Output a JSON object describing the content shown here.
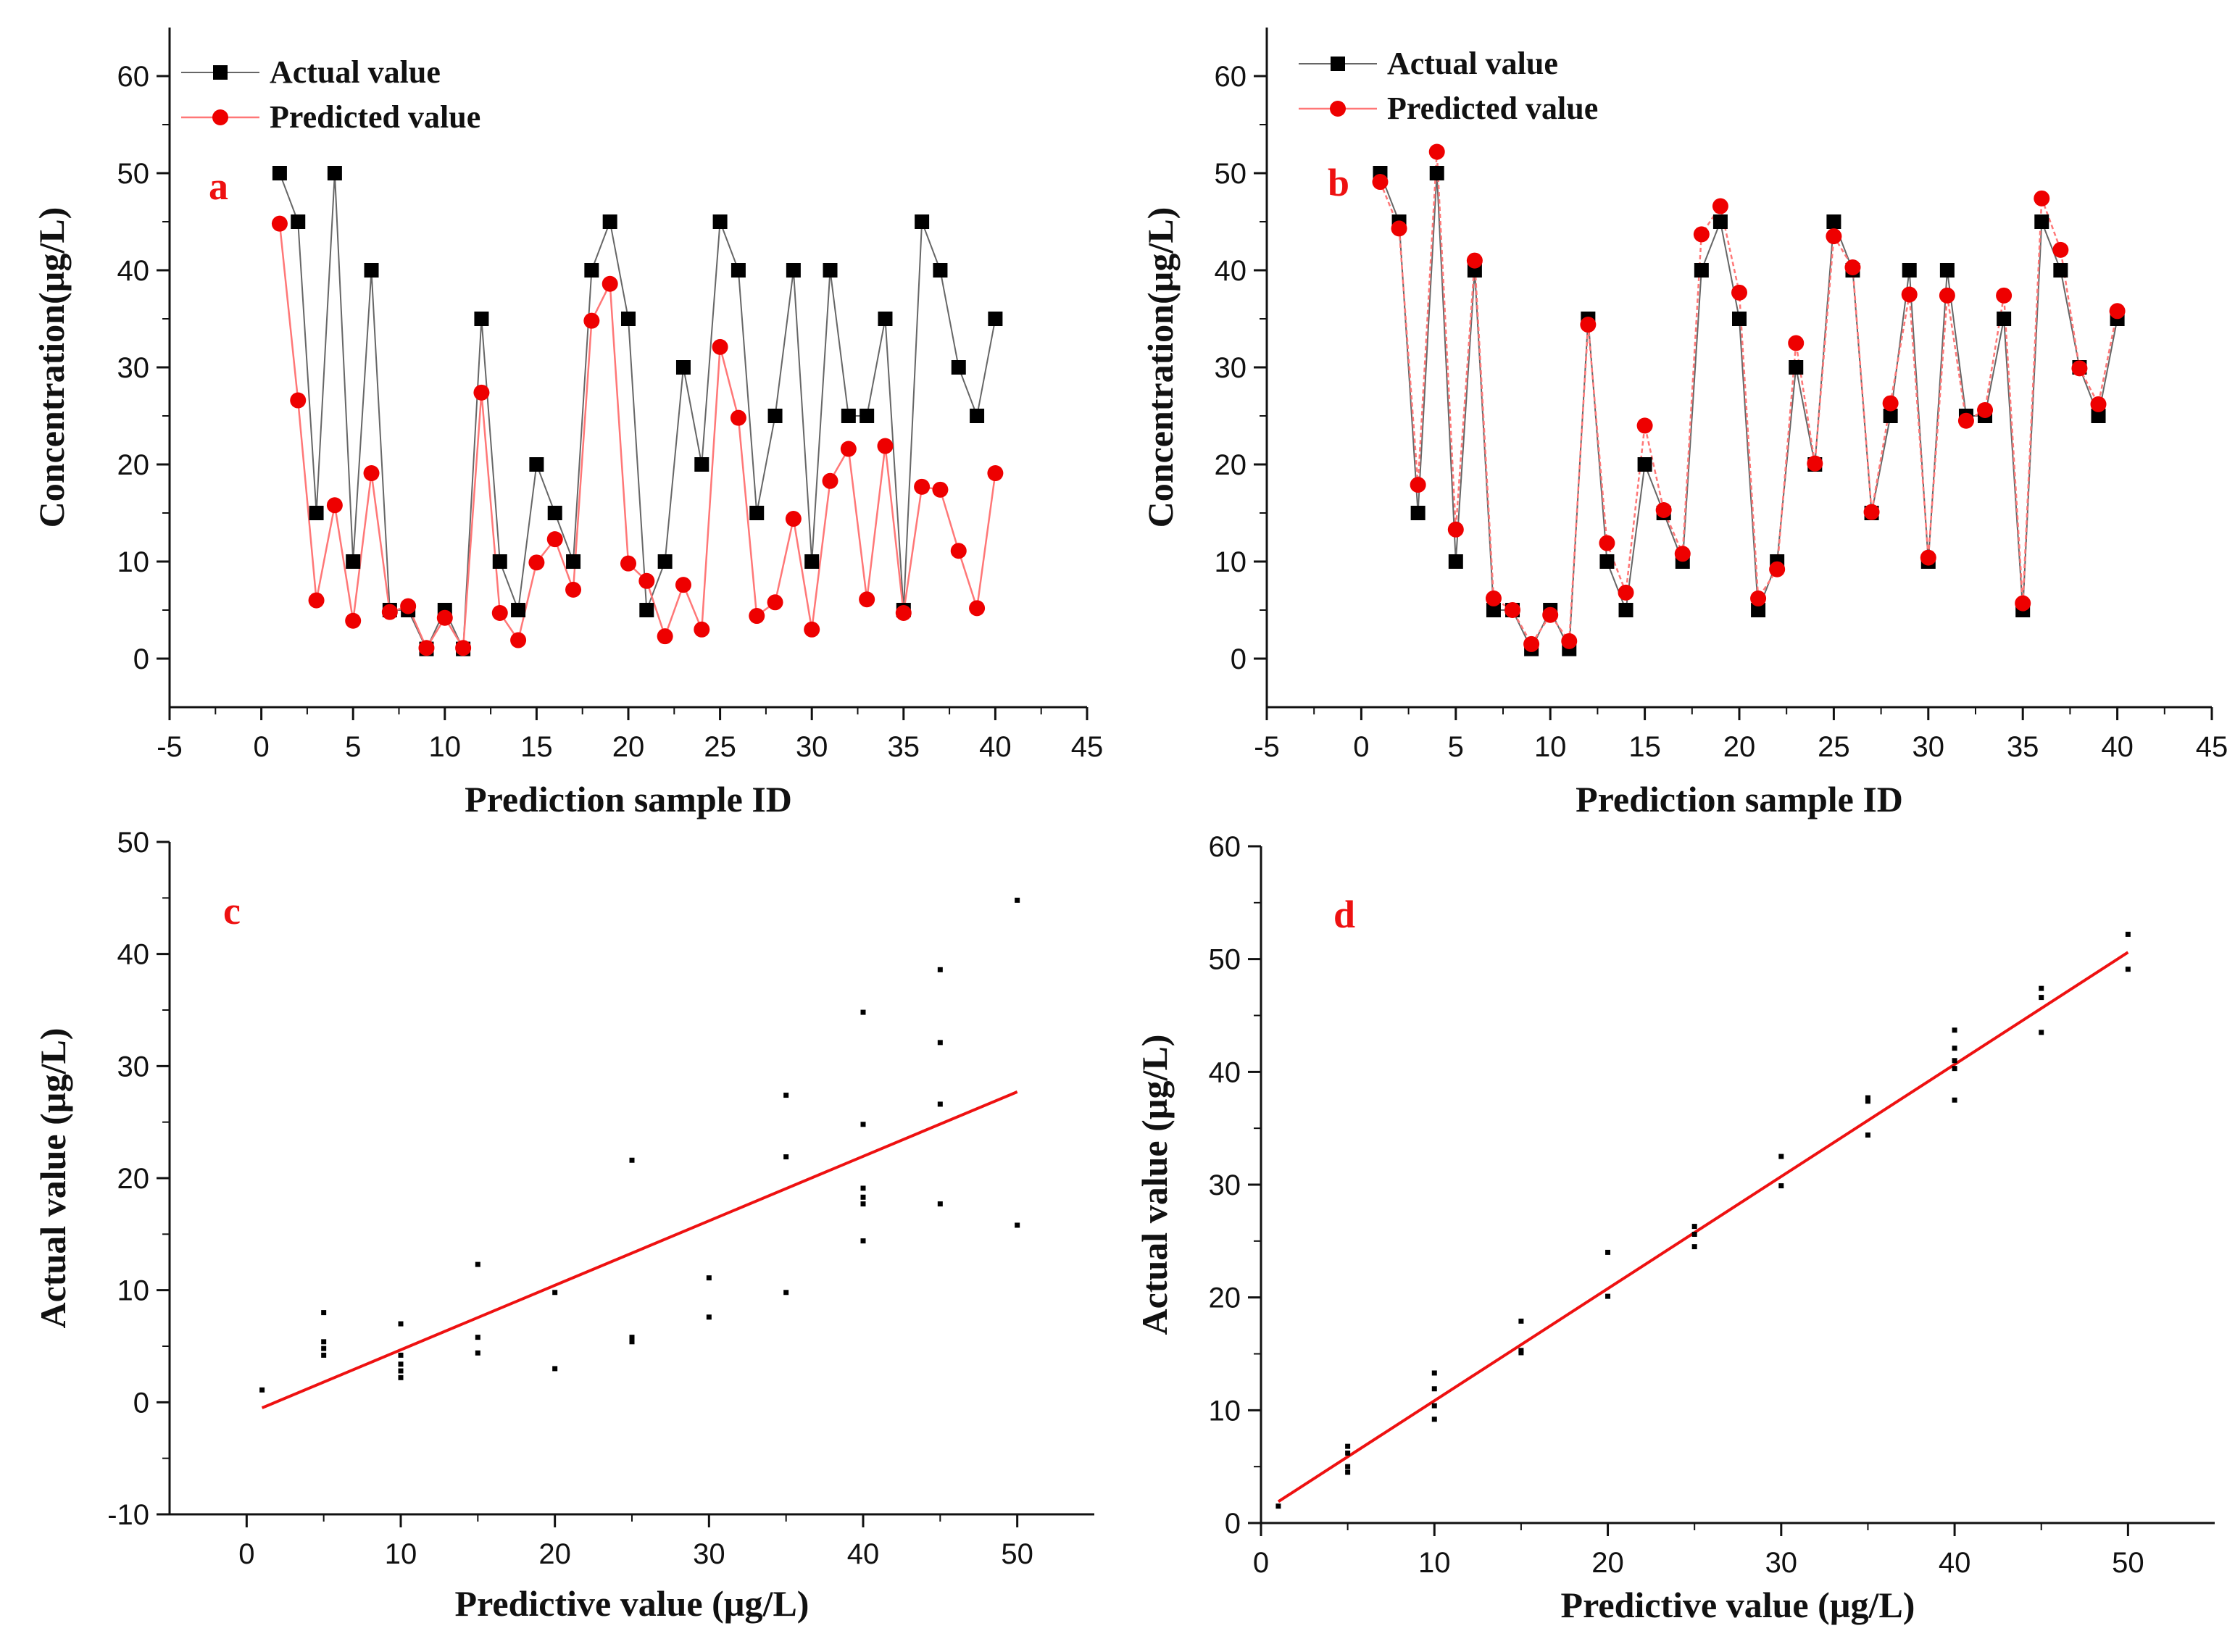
{
  "colors": {
    "actual_line": "#666666",
    "actual_marker": "#000000",
    "predicted_line": "#ff7777",
    "predicted_marker": "#ee0000",
    "fit_line": "#ee1111",
    "axis": "#111111"
  },
  "chart_data": [
    {
      "type": "line",
      "panel_label": "a",
      "xlabel": "Prediction sample ID",
      "ylabel": "Concentration(µg/L)",
      "xlim": [
        -5,
        45
      ],
      "ylim": [
        -5,
        65
      ],
      "xticks": [
        "-5",
        "0",
        "5",
        "10",
        "15",
        "20",
        "25",
        "30",
        "35",
        "40",
        "45"
      ],
      "yticks": [
        "0",
        "10",
        "20",
        "30",
        "40",
        "50",
        "60"
      ],
      "legend_position": "top-left",
      "x": [
        1,
        2,
        3,
        4,
        5,
        6,
        7,
        8,
        9,
        10,
        11,
        12,
        13,
        14,
        15,
        16,
        17,
        18,
        19,
        20,
        21,
        22,
        23,
        24,
        25,
        26,
        27,
        28,
        29,
        30,
        31,
        32,
        33,
        34,
        35,
        36,
        37,
        38,
        39,
        40
      ],
      "series": [
        {
          "name": "Actual value",
          "values": [
            50,
            45,
            15,
            50,
            10,
            40,
            5,
            5,
            1,
            5,
            1,
            35,
            10,
            5,
            20,
            15,
            10,
            40,
            45,
            35,
            5,
            10,
            30,
            20,
            45,
            40,
            15,
            25,
            40,
            10,
            40,
            25,
            25,
            35,
            5,
            45,
            40,
            30,
            25,
            35
          ]
        },
        {
          "name": "Predicted value",
          "values": [
            44.8,
            26.6,
            6.0,
            15.8,
            3.9,
            19.1,
            4.8,
            5.4,
            1.1,
            4.2,
            1.1,
            27.4,
            4.7,
            1.9,
            9.9,
            12.3,
            7.1,
            34.8,
            38.6,
            9.8,
            8.0,
            2.3,
            7.6,
            3.0,
            32.1,
            24.8,
            4.4,
            5.8,
            14.4,
            3.0,
            18.3,
            21.6,
            6.1,
            21.9,
            4.7,
            17.7,
            17.4,
            11.1,
            5.2,
            19.1
          ]
        }
      ]
    },
    {
      "type": "line",
      "panel_label": "b",
      "xlabel": "Prediction sample ID",
      "ylabel": "Concentration(µg/L)",
      "xlim": [
        -5,
        45
      ],
      "ylim": [
        -5,
        65
      ],
      "xticks": [
        "-5",
        "0",
        "5",
        "10",
        "15",
        "20",
        "25",
        "30",
        "35",
        "40",
        "45"
      ],
      "yticks": [
        "0",
        "10",
        "20",
        "30",
        "40",
        "50",
        "60"
      ],
      "legend_position": "top-left",
      "x": [
        1,
        2,
        3,
        4,
        5,
        6,
        7,
        8,
        9,
        10,
        11,
        12,
        13,
        14,
        15,
        16,
        17,
        18,
        19,
        20,
        21,
        22,
        23,
        24,
        25,
        26,
        27,
        28,
        29,
        30,
        31,
        32,
        33,
        34,
        35,
        36,
        37,
        38,
        39,
        40
      ],
      "series": [
        {
          "name": "Actual value",
          "values": [
            50,
            45,
            15,
            50,
            10,
            40,
            5,
            5,
            1,
            5,
            1,
            35,
            10,
            5,
            20,
            15,
            10,
            40,
            45,
            35,
            5,
            10,
            30,
            20,
            45,
            40,
            15,
            25,
            40,
            10,
            40,
            25,
            25,
            35,
            5,
            45,
            40,
            30,
            25,
            35
          ]
        },
        {
          "name": "Predicted value",
          "values": [
            49.1,
            44.3,
            17.9,
            52.2,
            13.3,
            41.0,
            6.2,
            5.0,
            1.5,
            4.5,
            1.8,
            34.4,
            11.9,
            6.8,
            24.0,
            15.3,
            10.8,
            43.7,
            46.6,
            37.7,
            6.2,
            9.2,
            32.5,
            20.1,
            43.5,
            40.3,
            15.1,
            26.3,
            37.5,
            10.4,
            37.4,
            24.5,
            25.6,
            37.4,
            5.7,
            47.4,
            42.1,
            29.9,
            26.2,
            35.8
          ]
        }
      ]
    },
    {
      "type": "scatter",
      "panel_label": "c",
      "xlabel": "Predictive value (µg/L)",
      "ylabel": "Actual value (µg/L)",
      "xlim": [
        -5,
        55
      ],
      "ylim": [
        -10,
        50
      ],
      "xticks": [
        "0",
        "10",
        "20",
        "30",
        "40",
        "50"
      ],
      "yticks": [
        "-10",
        "0",
        "10",
        "20",
        "30",
        "40",
        "50"
      ],
      "x": [
        1,
        5,
        5,
        5,
        5,
        10,
        10,
        10,
        10,
        10,
        15,
        15,
        15,
        20,
        20,
        25,
        25,
        25,
        30,
        30,
        35,
        35,
        35,
        40,
        40,
        40,
        40,
        40,
        40,
        45,
        45,
        45,
        45,
        50,
        50
      ],
      "y": [
        1.1,
        8.0,
        5.4,
        4.8,
        4.2,
        7.0,
        4.2,
        3.4,
        2.8,
        2.2,
        12.3,
        5.8,
        4.4,
        9.8,
        3.0,
        21.6,
        5.8,
        5.4,
        11.1,
        7.6,
        27.4,
        21.9,
        9.8,
        34.8,
        24.8,
        19.1,
        18.3,
        17.7,
        14.4,
        38.6,
        32.1,
        26.6,
        17.7,
        44.8,
        15.8
      ],
      "fit_line": {
        "x": [
          1,
          50
        ],
        "y": [
          -0.5,
          27.7
        ]
      }
    },
    {
      "type": "scatter",
      "panel_label": "d",
      "xlabel": "Predictive value (µg/L)",
      "ylabel": "Actual value (µg/L)",
      "xlim": [
        0,
        55
      ],
      "ylim": [
        0,
        60
      ],
      "xticks": [
        "0",
        "10",
        "20",
        "30",
        "40",
        "50"
      ],
      "yticks": [
        "0",
        "10",
        "20",
        "30",
        "40",
        "50",
        "60"
      ],
      "x": [
        1,
        5,
        5,
        5,
        5,
        10,
        10,
        10,
        10,
        15,
        15,
        15,
        20,
        20,
        25,
        25,
        25,
        30,
        30,
        35,
        35,
        35,
        40,
        40,
        40,
        40,
        40,
        45,
        45,
        45,
        50,
        50
      ],
      "y": [
        1.5,
        6.8,
        6.2,
        5.0,
        4.5,
        13.3,
        11.9,
        10.4,
        9.2,
        17.9,
        15.3,
        15.1,
        24.0,
        20.1,
        26.3,
        25.6,
        24.5,
        32.5,
        29.9,
        37.7,
        37.4,
        34.4,
        43.7,
        42.1,
        41.0,
        40.3,
        37.5,
        47.4,
        46.6,
        43.5,
        52.2,
        49.1
      ],
      "fit_line": {
        "x": [
          1,
          50
        ],
        "y": [
          1.9,
          50.6
        ]
      }
    }
  ]
}
